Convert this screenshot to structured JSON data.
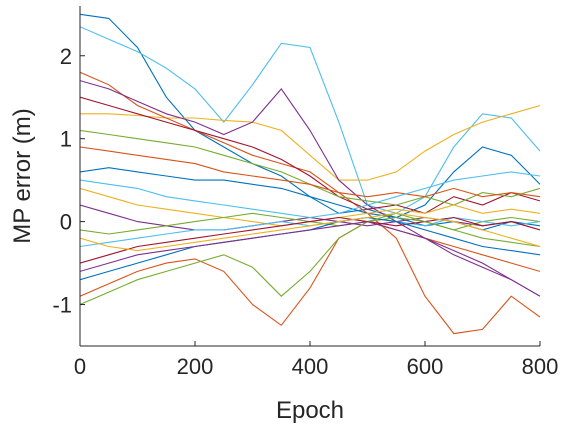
{
  "chart_data": {
    "type": "line",
    "title": "",
    "xlabel": "Epoch",
    "ylabel": "MP error (m)",
    "xlim": [
      0,
      800
    ],
    "ylim": [
      -1.5,
      2.6
    ],
    "xticks": [
      0,
      200,
      400,
      600,
      800
    ],
    "yticks": [
      -1,
      0,
      1,
      2
    ],
    "xtick_labels": [
      "0",
      "200",
      "400",
      "600",
      "800"
    ],
    "ytick_labels": [
      "-1",
      "0",
      "1",
      "2"
    ],
    "grid": false,
    "legend": "none",
    "colors": [
      "#0072BD",
      "#D95319",
      "#EDB120",
      "#7E2F8E",
      "#77AC30",
      "#4DBEEE",
      "#A2142F"
    ],
    "series": [
      {
        "color": "#0072BD",
        "x": [
          0,
          50,
          100,
          150,
          200,
          250,
          300,
          350,
          400,
          450,
          500,
          550,
          600,
          650,
          700,
          750,
          800
        ],
        "y": [
          2.5,
          2.45,
          2.1,
          1.5,
          1.1,
          0.9,
          0.7,
          0.55,
          0.3,
          0.1,
          0.15,
          0.05,
          0.2,
          0.6,
          0.9,
          0.8,
          0.45
        ]
      },
      {
        "color": "#4DBEEE",
        "x": [
          0,
          50,
          100,
          150,
          200,
          250,
          300,
          350,
          400,
          450,
          500,
          550,
          600,
          650,
          700,
          750,
          800
        ],
        "y": [
          2.35,
          2.2,
          2.05,
          1.85,
          1.6,
          1.2,
          1.65,
          2.15,
          2.1,
          1.2,
          0.2,
          0.1,
          0.3,
          0.9,
          1.3,
          1.25,
          0.85
        ]
      },
      {
        "color": "#EDB120",
        "x": [
          0,
          50,
          100,
          150,
          200,
          250,
          300,
          350,
          400,
          450,
          500,
          550,
          600,
          650,
          700,
          750,
          800
        ],
        "y": [
          1.3,
          1.3,
          1.28,
          1.25,
          1.25,
          1.22,
          1.2,
          1.1,
          0.8,
          0.5,
          0.5,
          0.6,
          0.85,
          1.05,
          1.2,
          1.3,
          1.4
        ]
      },
      {
        "color": "#D95319",
        "x": [
          0,
          50,
          100,
          150,
          200,
          250,
          300,
          350,
          400,
          450,
          500,
          550,
          600,
          650,
          700,
          750,
          800
        ],
        "y": [
          1.8,
          1.65,
          1.4,
          1.25,
          1.1,
          0.95,
          0.8,
          0.7,
          0.6,
          0.35,
          0.1,
          -0.2,
          -0.9,
          -1.35,
          -1.3,
          -0.9,
          -1.15
        ]
      },
      {
        "color": "#7E2F8E",
        "x": [
          0,
          50,
          100,
          150,
          200,
          250,
          300,
          350,
          400,
          450,
          500,
          550,
          600,
          650,
          700,
          750,
          800
        ],
        "y": [
          1.7,
          1.6,
          1.45,
          1.3,
          1.2,
          1.05,
          1.2,
          1.6,
          1.1,
          0.5,
          0.2,
          0.0,
          -0.2,
          -0.4,
          -0.55,
          -0.7,
          -0.9
        ]
      },
      {
        "color": "#A2142F",
        "x": [
          0,
          50,
          100,
          150,
          200,
          250,
          300,
          350,
          400,
          450,
          500,
          550,
          600,
          650,
          700,
          750,
          800
        ],
        "y": [
          1.5,
          1.4,
          1.3,
          1.2,
          1.1,
          1.0,
          0.9,
          0.75,
          0.55,
          0.3,
          0.15,
          0.2,
          0.1,
          0.3,
          0.2,
          0.35,
          0.25
        ]
      },
      {
        "color": "#77AC30",
        "x": [
          0,
          50,
          100,
          150,
          200,
          250,
          300,
          350,
          400,
          450,
          500,
          550,
          600,
          650,
          700,
          750,
          800
        ],
        "y": [
          1.1,
          1.05,
          1.0,
          0.95,
          0.9,
          0.8,
          0.7,
          0.6,
          0.45,
          0.3,
          0.25,
          0.2,
          0.3,
          0.2,
          0.35,
          0.3,
          0.4
        ]
      },
      {
        "color": "#0072BD",
        "x": [
          0,
          50,
          100,
          150,
          200,
          250,
          300,
          350,
          400,
          450,
          500,
          550,
          600,
          650,
          700,
          750,
          800
        ],
        "y": [
          0.6,
          0.65,
          0.6,
          0.55,
          0.5,
          0.5,
          0.45,
          0.4,
          0.3,
          0.2,
          0.1,
          0.05,
          -0.05,
          0.0,
          -0.1,
          0.0,
          -0.05
        ]
      },
      {
        "color": "#D95319",
        "x": [
          0,
          50,
          100,
          150,
          200,
          250,
          300,
          350,
          400,
          450,
          500,
          550,
          600,
          650,
          700,
          750,
          800
        ],
        "y": [
          0.9,
          0.85,
          0.8,
          0.75,
          0.7,
          0.6,
          0.55,
          0.5,
          0.45,
          0.35,
          0.3,
          0.35,
          0.3,
          0.4,
          0.3,
          0.35,
          0.3
        ]
      },
      {
        "color": "#EDB120",
        "x": [
          0,
          50,
          100,
          150,
          200,
          250,
          300,
          350,
          400,
          450,
          500,
          550,
          600,
          650,
          700,
          750,
          800
        ],
        "y": [
          0.4,
          0.3,
          0.2,
          0.15,
          0.1,
          0.05,
          0.0,
          -0.05,
          0.0,
          0.05,
          0.1,
          0.15,
          0.1,
          0.2,
          0.1,
          0.15,
          0.1
        ]
      },
      {
        "color": "#7E2F8E",
        "x": [
          0,
          50,
          100,
          150,
          200,
          250,
          300,
          350,
          400,
          450,
          500,
          550,
          600,
          650,
          700,
          750,
          800
        ],
        "y": [
          0.2,
          0.1,
          0.0,
          -0.05,
          -0.1,
          -0.1,
          -0.05,
          0.0,
          0.05,
          0.0,
          -0.05,
          0.0,
          0.05,
          0.0,
          -0.05,
          0.0,
          -0.1
        ]
      },
      {
        "color": "#77AC30",
        "x": [
          0,
          50,
          100,
          150,
          200,
          250,
          300,
          350,
          400,
          450,
          500,
          550,
          600,
          650,
          700,
          750,
          800
        ],
        "y": [
          -0.1,
          -0.15,
          -0.1,
          -0.05,
          0.0,
          0.05,
          0.1,
          0.05,
          0.0,
          -0.05,
          0.0,
          0.05,
          0.0,
          -0.1,
          0.0,
          0.05,
          0.0
        ]
      },
      {
        "color": "#4DBEEE",
        "x": [
          0,
          50,
          100,
          150,
          200,
          250,
          300,
          350,
          400,
          450,
          500,
          550,
          600,
          650,
          700,
          750,
          800
        ],
        "y": [
          -0.3,
          -0.25,
          -0.2,
          -0.15,
          -0.1,
          -0.1,
          -0.05,
          0.0,
          -0.05,
          0.0,
          0.05,
          0.0,
          -0.05,
          0.05,
          0.0,
          -0.05,
          0.0
        ]
      },
      {
        "color": "#A2142F",
        "x": [
          0,
          50,
          100,
          150,
          200,
          250,
          300,
          350,
          400,
          450,
          500,
          550,
          600,
          650,
          700,
          750,
          800
        ],
        "y": [
          -0.5,
          -0.4,
          -0.3,
          -0.25,
          -0.2,
          -0.15,
          -0.1,
          -0.05,
          0.0,
          0.05,
          0.0,
          -0.05,
          0.0,
          0.05,
          -0.05,
          0.0,
          -0.1
        ]
      },
      {
        "color": "#0072BD",
        "x": [
          0,
          50,
          100,
          150,
          200,
          250,
          300,
          350,
          400,
          450,
          500,
          550,
          600,
          650,
          700,
          750,
          800
        ],
        "y": [
          -0.7,
          -0.6,
          -0.5,
          -0.4,
          -0.3,
          -0.25,
          -0.2,
          -0.15,
          -0.1,
          0.0,
          0.05,
          0.0,
          -0.1,
          -0.2,
          -0.3,
          -0.35,
          -0.4
        ]
      },
      {
        "color": "#D95319",
        "x": [
          0,
          50,
          100,
          150,
          200,
          250,
          300,
          350,
          400,
          450,
          500,
          550,
          600,
          650,
          700,
          750,
          800
        ],
        "y": [
          -0.9,
          -0.75,
          -0.6,
          -0.5,
          -0.45,
          -0.6,
          -1.0,
          -1.25,
          -0.8,
          -0.2,
          0.0,
          -0.1,
          -0.2,
          -0.3,
          -0.4,
          -0.5,
          -0.6
        ]
      },
      {
        "color": "#77AC30",
        "x": [
          0,
          50,
          100,
          150,
          200,
          250,
          300,
          350,
          400,
          450,
          500,
          550,
          600,
          650,
          700,
          750,
          800
        ],
        "y": [
          -1.0,
          -0.85,
          -0.7,
          -0.6,
          -0.5,
          -0.4,
          -0.55,
          -0.9,
          -0.6,
          -0.2,
          0.0,
          0.1,
          0.0,
          -0.1,
          -0.2,
          -0.25,
          -0.3
        ]
      },
      {
        "color": "#7E2F8E",
        "x": [
          0,
          50,
          100,
          150,
          200,
          250,
          300,
          350,
          400,
          450,
          500,
          550,
          600,
          650,
          700,
          750,
          800
        ],
        "y": [
          -0.6,
          -0.5,
          -0.4,
          -0.35,
          -0.3,
          -0.25,
          -0.2,
          -0.15,
          -0.1,
          -0.05,
          0.0,
          -0.1,
          -0.2,
          -0.35,
          -0.5,
          -0.7,
          -0.9
        ]
      },
      {
        "color": "#EDB120",
        "x": [
          0,
          50,
          100,
          150,
          200,
          250,
          300,
          350,
          400,
          450,
          500,
          550,
          600,
          650,
          700,
          750,
          800
        ],
        "y": [
          -0.2,
          -0.3,
          -0.35,
          -0.3,
          -0.25,
          -0.2,
          -0.15,
          -0.1,
          -0.05,
          0.0,
          0.05,
          0.1,
          0.05,
          0.0,
          -0.1,
          -0.2,
          -0.3
        ]
      },
      {
        "color": "#4DBEEE",
        "x": [
          0,
          50,
          100,
          150,
          200,
          250,
          300,
          350,
          400,
          450,
          500,
          550,
          600,
          650,
          700,
          750,
          800
        ],
        "y": [
          0.5,
          0.45,
          0.4,
          0.3,
          0.25,
          0.2,
          0.15,
          0.1,
          0.05,
          0.1,
          0.2,
          0.3,
          0.4,
          0.5,
          0.55,
          0.6,
          0.55
        ]
      }
    ]
  }
}
